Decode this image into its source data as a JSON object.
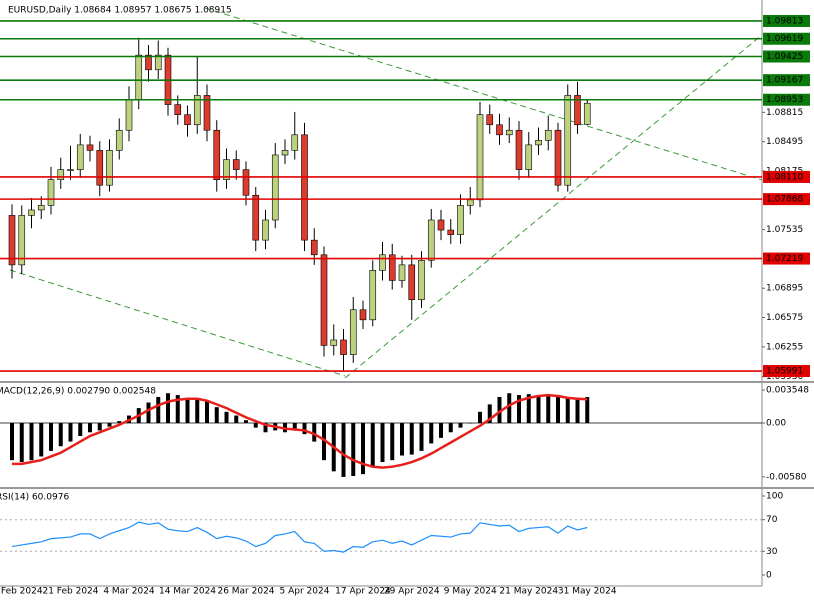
{
  "chart_data": [
    {
      "type": "candlestick",
      "title": "EURUSD,Daily  1.08684 1.08957 1.08675 1.08915",
      "categories": [
        null,
        "Feb 2024",
        null,
        null,
        null,
        null,
        "21 Feb 2024",
        null,
        null,
        null,
        null,
        null,
        "4 Mar 2024",
        null,
        null,
        null,
        null,
        null,
        "14 Mar 2024",
        null,
        null,
        null,
        null,
        null,
        "26 Mar 2024",
        null,
        null,
        null,
        null,
        null,
        "5 Apr 2024",
        null,
        null,
        null,
        null,
        null,
        "17 Apr 2024",
        null,
        null,
        null,
        null,
        "29 Apr 2024",
        null,
        null,
        null,
        null,
        null,
        "9 May 2024",
        null,
        null,
        null,
        null,
        null,
        "21 May 2024",
        null,
        null,
        null,
        null,
        null,
        "31 May 2024"
      ],
      "open": [
        1.0769,
        1.0715,
        1.0769,
        1.0775,
        1.078,
        1.0808,
        1.0819,
        1.0819,
        1.0846,
        1.084,
        1.0802,
        1.084,
        1.0862,
        1.0895,
        1.0944,
        1.0928,
        1.0944,
        1.089,
        1.0879,
        1.0868,
        1.09,
        1.0862,
        1.0808,
        1.083,
        1.0819,
        1.0791,
        1.0742,
        1.0764,
        1.0835,
        1.084,
        1.0857,
        1.0742,
        1.0726,
        1.0627,
        1.0633,
        1.0617,
        1.0666,
        1.0655,
        1.0709,
        1.0726,
        1.0698,
        1.0715,
        1.0677,
        1.072,
        1.0764,
        1.0753,
        1.0748,
        1.078,
        1.0786,
        1.0879,
        1.0868,
        1.0857,
        1.0862,
        1.0819,
        1.0846,
        1.0851,
        1.0862,
        1.0802,
        1.09,
        1.08684
      ],
      "high": [
        1.0781,
        1.078,
        1.0788,
        1.079,
        1.0822,
        1.0832,
        1.0845,
        1.0858,
        1.0856,
        1.085,
        1.0852,
        1.0875,
        1.091,
        1.0963,
        1.0955,
        1.096,
        1.0952,
        1.09,
        1.0889,
        1.0942,
        1.0912,
        1.0873,
        1.0842,
        1.084,
        1.0828,
        1.08,
        1.0775,
        1.0848,
        1.0852,
        1.0882,
        1.087,
        1.0755,
        1.0735,
        1.065,
        1.0645,
        1.068,
        1.0676,
        1.072,
        1.074,
        1.0738,
        1.0725,
        1.0726,
        1.073,
        1.0776,
        1.0775,
        1.0765,
        1.0792,
        1.08,
        1.0893,
        1.089,
        1.088,
        1.0876,
        1.0872,
        1.086,
        1.0865,
        1.0878,
        1.087,
        1.0912,
        1.0915,
        1.08957
      ],
      "low": [
        1.07,
        1.0705,
        1.0755,
        1.0765,
        1.077,
        1.0798,
        1.0808,
        1.081,
        1.0828,
        1.079,
        1.0795,
        1.083,
        1.085,
        1.0885,
        1.0915,
        1.0918,
        1.0878,
        1.0868,
        1.0855,
        1.0858,
        1.085,
        1.0795,
        1.0798,
        1.0808,
        1.078,
        1.073,
        1.0732,
        1.0755,
        1.0825,
        1.083,
        1.073,
        1.0715,
        1.0615,
        1.0616,
        1.0599,
        1.0608,
        1.0645,
        1.0648,
        1.0698,
        1.0688,
        1.069,
        1.0655,
        1.0668,
        1.0712,
        1.0742,
        1.0738,
        1.0738,
        1.077,
        1.0778,
        1.0858,
        1.0846,
        1.0848,
        1.0808,
        1.081,
        1.0835,
        1.084,
        1.0795,
        1.0795,
        1.0858,
        1.08675
      ],
      "close": [
        1.0715,
        1.0769,
        1.0775,
        1.078,
        1.0808,
        1.0819,
        1.0819,
        1.0846,
        1.084,
        1.0802,
        1.084,
        1.0862,
        1.0895,
        1.0944,
        1.0928,
        1.0944,
        1.089,
        1.0879,
        1.0868,
        1.09,
        1.0862,
        1.0808,
        1.083,
        1.0819,
        1.0791,
        1.0742,
        1.0764,
        1.0835,
        1.084,
        1.0857,
        1.0742,
        1.0726,
        1.0627,
        1.0633,
        1.0617,
        1.0666,
        1.0655,
        1.0709,
        1.0726,
        1.0698,
        1.0715,
        1.0677,
        1.072,
        1.0764,
        1.0753,
        1.0748,
        1.078,
        1.0786,
        1.0879,
        1.0868,
        1.0857,
        1.0862,
        1.0819,
        1.0846,
        1.0851,
        1.0862,
        1.0802,
        1.09,
        1.0868,
        1.08915
      ],
      "up_color": "#bcd27f",
      "down_color": "#dc3b2e",
      "ylim": [
        1.05893,
        1.10042
      ],
      "yticks": [
        1.08815,
        1.08495,
        1.08175,
        1.07535,
        1.06895,
        1.06575,
        1.06255,
        {
          "value": 1.0593,
          "label": "1.05930"
        }
      ],
      "levels": [
        {
          "value": 1.09813,
          "color": "#0a7a0a"
        },
        {
          "value": 1.09619,
          "color": "#0a7a0a"
        },
        {
          "value": 1.09425,
          "color": "#0a7a0a"
        },
        {
          "value": 1.09167,
          "color": "#0a7a0a"
        },
        {
          "value": 1.08953,
          "color": "#0a7a0a"
        },
        {
          "value": 1.0811,
          "label": "1.08110",
          "color": "#e00000"
        },
        {
          "value": 1.07868,
          "color": "#e00000"
        },
        {
          "value": 1.07219,
          "color": "#e00000"
        },
        {
          "value": 1.05991,
          "color": "#e00000"
        }
      ]
    },
    {
      "type": "macd",
      "title": "MACD(12,26,9) 0.002790 0.002548",
      "values": [
        -0.004,
        -0.0042,
        -0.004,
        -0.0036,
        -0.003,
        -0.0025,
        -0.002,
        -0.0014,
        -0.001,
        -0.0008,
        -0.0004,
        0.0002,
        0.0008,
        0.0016,
        0.0022,
        0.0028,
        0.0032,
        0.003,
        0.0027,
        0.0026,
        0.0024,
        0.0017,
        0.0012,
        0.0008,
        0.0003,
        -0.0005,
        -0.001,
        -0.0008,
        -0.001,
        -0.0008,
        -0.0012,
        -0.002,
        -0.004,
        -0.0052,
        -0.0058,
        -0.0057,
        -0.0055,
        -0.0048,
        -0.0042,
        -0.004,
        -0.0035,
        -0.0034,
        -0.003,
        -0.0022,
        -0.0016,
        -0.001,
        -0.0005,
        0,
        0.0012,
        0.002,
        0.0028,
        0.0032,
        0.003,
        0.0031,
        0.003,
        0.003,
        0.0028,
        0.0028,
        0.0027,
        0.00279
      ],
      "signal": [
        -0.0044,
        -0.0044,
        -0.0042,
        -0.004,
        -0.0036,
        -0.0032,
        -0.0026,
        -0.002,
        -0.0014,
        -0.001,
        -0.0006,
        -0.0002,
        0.0003,
        0.0008,
        0.0014,
        0.0019,
        0.0023,
        0.0025,
        0.0026,
        0.0026,
        0.0024,
        0.002,
        0.0016,
        0.0011,
        0.0006,
        0.0002,
        -0.0002,
        -0.0004,
        -0.0006,
        -0.0007,
        -0.0008,
        -0.0012,
        -0.0018,
        -0.0026,
        -0.0034,
        -0.004,
        -0.0044,
        -0.0047,
        -0.0048,
        -0.0047,
        -0.0045,
        -0.0042,
        -0.0038,
        -0.0033,
        -0.0027,
        -0.0021,
        -0.0015,
        -0.0009,
        -0.0003,
        0.0004,
        0.0012,
        0.0019,
        0.0024,
        0.0027,
        0.0029,
        0.003,
        0.0029,
        0.0027,
        0.0026,
        0.002548
      ],
      "color": "#000000",
      "signal_color": "#e8201b",
      "ylim": [
        -0.00667,
        0.0043
      ],
      "yticks": [
        0.003548,
        {
          "value": 0,
          "label": "0.00"
        },
        {
          "value": -0.0058,
          "label": "-0.00580"
        }
      ]
    },
    {
      "type": "line",
      "title": "RSI(14) 60.0976",
      "values": [
        36,
        38,
        40,
        42,
        46,
        47,
        48,
        52,
        52,
        46,
        52,
        56,
        60,
        67,
        64,
        66,
        58,
        56,
        55,
        60,
        54,
        46,
        49,
        47,
        43,
        36,
        40,
        50,
        52,
        55,
        42,
        40,
        30,
        31,
        29,
        36,
        35,
        42,
        44,
        40,
        43,
        38,
        44,
        50,
        49,
        48,
        52,
        53,
        66,
        64,
        62,
        63,
        55,
        59,
        60,
        61,
        53,
        62,
        57,
        60.0976
      ],
      "color": "#1e90ff",
      "ylim": [
        -12.7,
        107.6
      ],
      "yticks": [
        100,
        70,
        30,
        0
      ],
      "levels": [
        70,
        30
      ]
    }
  ]
}
